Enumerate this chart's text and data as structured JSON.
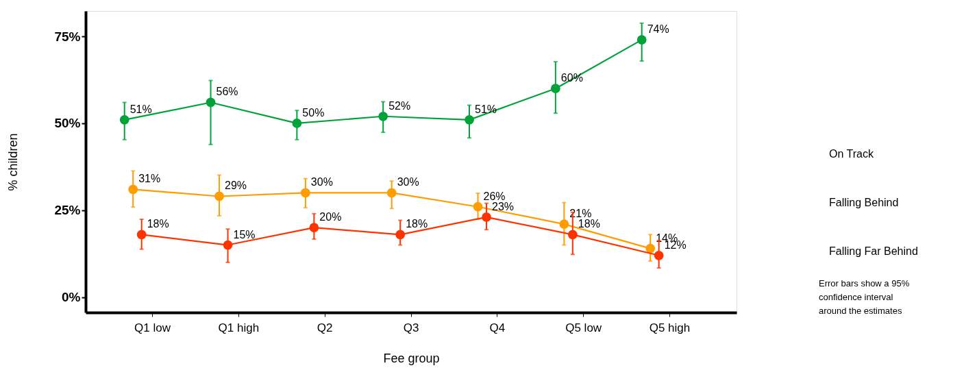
{
  "chart_data": {
    "type": "line",
    "xlabel": "Fee group",
    "ylabel": "% children",
    "categories": [
      "Q1 low",
      "Q1 high",
      "Q2",
      "Q3",
      "Q4",
      "Q5 low",
      "Q5 high"
    ],
    "series": [
      {
        "name": "On Track",
        "color": "#00a33a",
        "values": [
          51,
          56,
          50,
          52,
          51,
          60,
          74
        ],
        "value_labels": [
          "51%",
          "56%",
          "50%",
          "52%",
          "51%",
          "60%",
          "74%"
        ],
        "errors": [
          [
            45.3,
            56.0
          ],
          [
            43.9,
            62.3
          ],
          [
            45.3,
            53.7
          ],
          [
            47.4,
            56.2
          ],
          [
            45.8,
            55.2
          ],
          [
            52.9,
            67.7
          ],
          [
            67.9,
            78.8
          ]
        ]
      },
      {
        "name": "Falling Behind",
        "color": "#ff9c00",
        "values": [
          31,
          29,
          30,
          30,
          26,
          21,
          14
        ],
        "value_labels": [
          "31%",
          "29%",
          "30%",
          "30%",
          "26%",
          "21%",
          "14%"
        ],
        "errors": [
          [
            25.9,
            36.3
          ],
          [
            23.4,
            35.1
          ],
          [
            25.7,
            34.1
          ],
          [
            25.5,
            33.4
          ],
          [
            22.4,
            29.9
          ],
          [
            15.0,
            27.2
          ],
          [
            10.4,
            18.0
          ]
        ]
      },
      {
        "name": "Falling Far Behind",
        "color": "#ff3300",
        "values": [
          18,
          15,
          20,
          18,
          23,
          18,
          12
        ],
        "value_labels": [
          "18%",
          "15%",
          "20%",
          "18%",
          "23%",
          "18%",
          "12%"
        ],
        "errors": [
          [
            13.8,
            22.4
          ],
          [
            10.0,
            19.6
          ],
          [
            16.7,
            24.0
          ],
          [
            15.0,
            22.1
          ],
          [
            19.4,
            27.0
          ],
          [
            12.3,
            24.4
          ],
          [
            8.4,
            16.3
          ]
        ]
      }
    ],
    "ylim": [
      -4.4,
      82.3
    ],
    "yticks": [
      {
        "value": 0,
        "label": "0%"
      },
      {
        "value": 25,
        "label": "25%"
      },
      {
        "value": 50,
        "label": "50%"
      },
      {
        "value": 75,
        "label": "75%"
      }
    ],
    "grid": false,
    "legend": "right",
    "marker": "circle",
    "annotations": [
      "Error bars show a 95% confidence interval around the estimates"
    ]
  }
}
